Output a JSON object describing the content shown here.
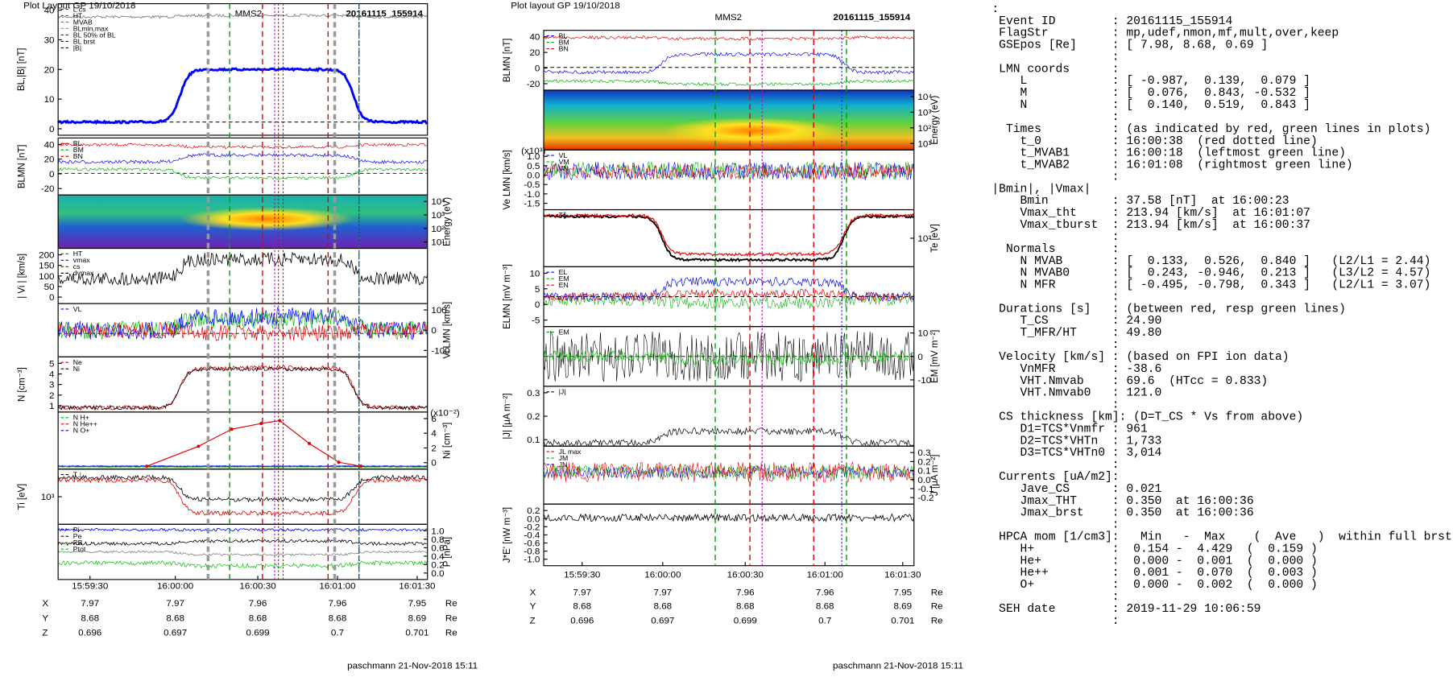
{
  "left": {
    "header": "Plot Layout GP 19/10/2018",
    "title": "MMS2",
    "event": "20161115_155914",
    "panels": [
      {
        "label": "BL,|B| [nT]",
        "side": "left",
        "ticks": [
          "40",
          "30",
          "20",
          "10",
          "0"
        ],
        "legend": [
          {
            "name": "L cs",
            "color": "#e00000"
          },
          {
            "name": "HT",
            "color": "#00a000"
          },
          {
            "name": "MVAB",
            "color": "#00c000"
          },
          {
            "name": "BLmin,max",
            "color": "#909090"
          },
          {
            "name": "BL 50% of BL",
            "color": "#2020ff"
          },
          {
            "name": "BL brst",
            "color": "#0000ff"
          },
          {
            "name": "|B|",
            "color": "#000000"
          }
        ]
      },
      {
        "label": "BLMN [nT]",
        "side": "left",
        "ticks": [
          "40",
          "20",
          "0",
          "-20"
        ],
        "legend": [
          {
            "name": "BL",
            "color": "#e00000"
          },
          {
            "name": "BM",
            "color": "#00b000"
          },
          {
            "name": "BN",
            "color": "#e00000"
          }
        ]
      },
      {
        "label": "Energy (eV)",
        "side": "right",
        "ticks": [
          "10⁴",
          "10³",
          "10²",
          "10¹"
        ],
        "legend": []
      },
      {
        "label": "| Vi | [km/s]",
        "side": "left",
        "ticks": [
          "200",
          "150",
          "100",
          "50",
          "0"
        ],
        "legend": [
          {
            "name": "HT",
            "color": "#00a000"
          },
          {
            "name": "vmax",
            "color": "#2020ff"
          },
          {
            "name": "cs",
            "color": "#e00000"
          },
          {
            "name": "dvmax",
            "color": "#000000"
          }
        ]
      },
      {
        "label": "Vi LMN [km/s]",
        "side": "right",
        "ticks": [
          "100",
          "0",
          "-100"
        ],
        "legend": [
          {
            "name": "VL",
            "color": "#0000ff"
          }
        ]
      },
      {
        "label": "N [cm⁻³]",
        "side": "left",
        "ticks": [
          "5",
          "4",
          "3",
          "2",
          "1"
        ],
        "legend": [
          {
            "name": "Ne",
            "color": "#e00000"
          },
          {
            "name": "Ni",
            "color": "#000000"
          }
        ]
      },
      {
        "label": "Ni [cm⁻³]",
        "side": "right",
        "ticks": [
          "6",
          "4",
          "2",
          "0"
        ],
        "legend": [
          {
            "name": "N  H+",
            "color": "#00b000"
          },
          {
            "name": "N  He++",
            "color": "#e00000"
          },
          {
            "name": "N  O+",
            "color": "#0000ff"
          }
        ],
        "note": "(x10⁻²)"
      },
      {
        "label": "Ti [eV]",
        "side": "left",
        "ticks": [
          "10³"
        ],
        "legend": [
          {
            "name": "T⊥",
            "color": "#000000"
          }
        ]
      },
      {
        "label": "P [nPa]",
        "side": "right",
        "ticks": [
          "1.0",
          "0.8",
          "0.6",
          "0.4",
          "0.2",
          "0.0"
        ],
        "legend": [
          {
            "name": "Pi",
            "color": "#0000ff"
          },
          {
            "name": "Pe",
            "color": "#000000"
          },
          {
            "name": "PB",
            "color": "#808080"
          },
          {
            "name": "Ptot",
            "color": "#00c000"
          }
        ]
      }
    ],
    "xticks": [
      "15:59:30",
      "16:00:00",
      "16:00:30",
      "16:01:00",
      "16:01:30"
    ],
    "orbit": [
      [
        "X",
        "7.97",
        "7.97",
        "7.96",
        "7.96",
        "7.95",
        "Re"
      ],
      [
        "Y",
        "8.68",
        "8.68",
        "8.68",
        "8.68",
        "8.69",
        "Re"
      ],
      [
        "Z",
        "0.696",
        "0.697",
        "0.699",
        "0.7",
        "0.701",
        "Re"
      ]
    ],
    "footer": "paschmann 21-Nov-2018 15:11"
  },
  "right": {
    "header": "Plot layout GP 19/10/2018",
    "title": "MMS2",
    "event": "20161115_155914",
    "panels": [
      {
        "label": "BLMN [nT]",
        "side": "left",
        "ticks": [
          "40",
          "20",
          "0",
          "-20"
        ],
        "legend": [
          {
            "name": "BL",
            "color": "#0000ff"
          },
          {
            "name": "BM",
            "color": "#00b000"
          },
          {
            "name": "BN",
            "color": "#e00000"
          }
        ]
      },
      {
        "label": "Energy (eV)",
        "side": "right",
        "ticks": [
          "10⁴",
          "10³",
          "10²",
          "10¹"
        ],
        "legend": []
      },
      {
        "label": "Ve LMN [km/s]",
        "side": "left",
        "ticks": [
          "1.0",
          "0.5",
          "0.0",
          "-0.5",
          "-1.0",
          "-1.5"
        ],
        "legend": [
          {
            "name": "VL",
            "color": "#0000ff"
          },
          {
            "name": "VM",
            "color": "#00b000"
          },
          {
            "name": "VN",
            "color": "#e00000"
          }
        ],
        "note": "(x10³)"
      },
      {
        "label": "Te [eV]",
        "side": "right",
        "ticks": [
          "10²"
        ],
        "legend": [
          {
            "name": "T∥",
            "color": "#000000"
          }
        ]
      },
      {
        "label": "ELMN [mV m⁻³]",
        "side": "left",
        "ticks": [
          "10",
          "5",
          "0",
          "-5"
        ],
        "legend": [
          {
            "name": "EL",
            "color": "#0000ff"
          },
          {
            "name": "EM",
            "color": "#00b000"
          },
          {
            "name": "EN",
            "color": "#e00000"
          }
        ]
      },
      {
        "label": "EM [mV m⁻²]",
        "side": "right",
        "ticks": [
          "10",
          "0",
          "-10"
        ],
        "legend": [
          {
            "name": "EM",
            "color": "#00b000"
          }
        ]
      },
      {
        "label": "|J| [μA m⁻²]",
        "side": "left",
        "ticks": [
          "0.3",
          "0.2",
          "0.1"
        ],
        "legend": [
          {
            "name": "|J|",
            "color": "#000000"
          }
        ]
      },
      {
        "label": "J [μA m⁻²]",
        "side": "right",
        "ticks": [
          "0.3",
          "0.2",
          "0.1",
          "0.0",
          "-0.1",
          "-0.2"
        ],
        "legend": [
          {
            "name": "JL max",
            "color": "#e00000"
          },
          {
            "name": "JM",
            "color": "#00b000"
          },
          {
            "name": "JN",
            "color": "#0000ff"
          }
        ]
      },
      {
        "label": "J*E' [nW m⁻³]",
        "side": "left",
        "ticks": [
          "0.2",
          "0.0",
          "-0.2",
          "-0.4",
          "-0.6",
          "-0.8",
          "-1.0"
        ],
        "legend": []
      }
    ],
    "xticks": [
      "15:59:30",
      "16:00:00",
      "16:00:30",
      "16:01:00",
      "16:01:30"
    ],
    "orbit": [
      [
        "X",
        "7.97",
        "7.97",
        "7.96",
        "7.96",
        "7.95",
        "Re"
      ],
      [
        "Y",
        "8.68",
        "8.68",
        "8.68",
        "8.68",
        "8.69",
        "Re"
      ],
      [
        "Z",
        "0.696",
        "0.697",
        "0.699",
        "0.7",
        "0.701",
        "Re"
      ]
    ],
    "footer": "paschmann 21-Nov-2018 15:11"
  },
  "info": [
    ":",
    " Event ID        : 20161115_155914",
    " FlagStr         : mp,udef,nmon,mf,mult,over,keep",
    " GSEpos [Re]     : [ 7.98, 8.68, 0.69 ]",
    "                 :",
    " LMN coords      :",
    "    L            : [ -0.987,  0.139,  0.079 ]",
    "    M            : [  0.076,  0.843, -0.532 ]",
    "    N            : [  0.140,  0.519,  0.843 ]",
    "                 :",
    "  Times          : (as indicated by red, green lines in plots)",
    "    t_0          : 16:00:38  (red dotted line)",
    "    t_MVAB1      : 16:00:18  (leftmost green line)",
    "    t_MVAB2      : 16:01:08  (rightmost green line)",
    "                 :",
    "|Bmin|, |Vmax|",
    "    Bmin         : 37.58 [nT]  at 16:00:23",
    "    Vmax_tht     : 213.94 [km/s]  at 16:01:07",
    "    Vmax_tburst  : 213.94 [km/s]  at 16:00:37",
    "                 :",
    "  Normals        :",
    "    N MVAB       : [  0.133,  0.526,  0.840 ]   (L2/L1 = 2.44)",
    "    N MVAB0      : [  0.243, -0.946,  0.213 ]   (L3/L2 = 4.57)",
    "    N MFR        : [ -0.495, -0.798,  0.343 ]   (L2/L1 = 3.07)",
    "                 :",
    " Durations [s]   : (between red, resp green lines)",
    "    T_CS         : 24.90",
    "    T_MFR/HT     : 49.80",
    "                 :",
    " Velocity [km/s] : (based on FPI ion data)",
    "    VnMFR        : -38.6",
    "    VHT.Nmvab    : 69.6  (HTcc = 0.833)",
    "    VHT.Nmvab0   : 121.0",
    "                 :",
    " CS thickness [km]: (D=T_CS * Vs from above)",
    "    D1=TCS*Vnmfr : 961",
    "    D2=TCS*VHTn  : 1,733",
    "    D3=TCS*VHTn0 : 3,014",
    "                 :",
    " Currents [uA/m2]:",
    "    Jave_CS      : 0.021",
    "    Jmax_THT     : 0.350  at 16:00:36",
    "    Jmax_brst    : 0.350  at 16:00:36",
    "                 :",
    " HPCA mom [1/cm3]:   Min   -  Max    (  Ave   )  within full brst int",
    "    H+           :  0.154 -  4.429  (  0.159 )",
    "    He+          :  0.000 -  0.001  (  0.000 )",
    "    He++         :  0.001 -  0.070  (  0.003 )",
    "    O+           :  0.000 -  0.002  (  0.000 )",
    "                 :",
    " SEH date        : 2019-11-29 10:06:59",
    "                 :"
  ]
}
